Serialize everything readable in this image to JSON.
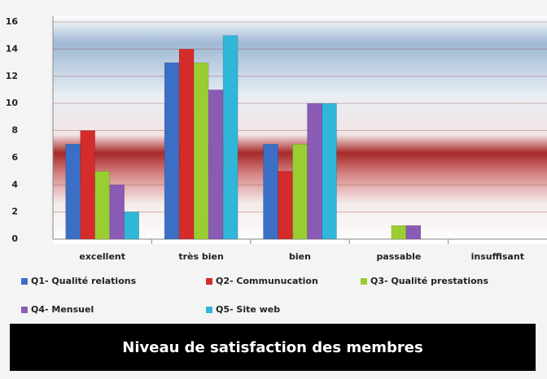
{
  "chart_data": {
    "type": "bar",
    "title": "Niveau de satisfaction des membres",
    "categories": [
      "excellent",
      "très bien",
      "bien",
      "passable",
      "insuffisant"
    ],
    "series": [
      {
        "name": "Q1- Qualité relations",
        "color": "#3b6fc6",
        "values": [
          7,
          13,
          7,
          0,
          0
        ]
      },
      {
        "name": "Q2- Communucation",
        "color": "#d42b2b",
        "values": [
          8,
          14,
          5,
          0,
          0
        ]
      },
      {
        "name": "Q3- Qualité prestations",
        "color": "#9acd32",
        "values": [
          5,
          13,
          7,
          1,
          0
        ]
      },
      {
        "name": "Q4- Mensuel",
        "color": "#8a5bb4",
        "values": [
          4,
          11,
          10,
          1,
          0
        ]
      },
      {
        "name": "Q5- Site web",
        "color": "#2fb6d8",
        "values": [
          2,
          15,
          10,
          0,
          0
        ]
      }
    ],
    "ylim": [
      0,
      16
    ],
    "yticks": [
      0,
      2,
      4,
      6,
      8,
      10,
      12,
      14,
      16
    ],
    "grid": true
  }
}
